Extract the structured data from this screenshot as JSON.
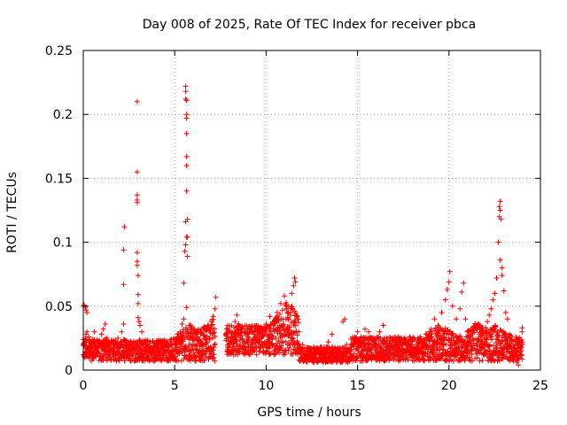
{
  "chart_data": {
    "type": "scatter",
    "title": "Day 008 of 2025, Rate Of TEC Index for receiver pbca",
    "xlabel": "GPS time / hours",
    "ylabel": "ROTI / TECUs",
    "xlim": [
      0,
      25
    ],
    "ylim": [
      0,
      0.25
    ],
    "xticks": [
      "0",
      "5",
      "10",
      "15",
      "20",
      "25"
    ],
    "yticks": [
      "0",
      "0.05",
      "0.1",
      "0.15",
      "0.2",
      "0.25"
    ],
    "grid": true,
    "marker": "plus",
    "colors": {
      "points": "#ff0000",
      "grid": "#a0a0a0"
    },
    "series": [
      {
        "points": [
          [
            0.0,
            0.05
          ],
          [
            0.05,
            0.051
          ],
          [
            0.1,
            0.049
          ],
          [
            0.15,
            0.047
          ],
          [
            0.2,
            0.045
          ],
          [
            0.05,
            0.02
          ],
          [
            0.1,
            0.025
          ],
          [
            0.15,
            0.028
          ],
          [
            0.2,
            0.03
          ],
          [
            0.3,
            0.026
          ],
          [
            0.4,
            0.022
          ],
          [
            0.5,
            0.024
          ],
          [
            0.6,
            0.03
          ],
          [
            0.7,
            0.018
          ],
          [
            0.8,
            0.015
          ],
          [
            0.9,
            0.02
          ],
          [
            1.0,
            0.028
          ],
          [
            1.1,
            0.032
          ],
          [
            1.2,
            0.036
          ],
          [
            1.3,
            0.025
          ],
          [
            1.5,
            0.018
          ],
          [
            1.7,
            0.022
          ],
          [
            1.9,
            0.025
          ],
          [
            2.0,
            0.02
          ],
          [
            2.1,
            0.03
          ],
          [
            2.2,
            0.036
          ],
          [
            2.2,
            0.067
          ],
          [
            2.2,
            0.094
          ],
          [
            2.25,
            0.112
          ],
          [
            2.4,
            0.018
          ],
          [
            2.6,
            0.015
          ],
          [
            2.8,
            0.02
          ],
          [
            2.95,
            0.21
          ],
          [
            2.95,
            0.155
          ],
          [
            2.95,
            0.137
          ],
          [
            2.95,
            0.133
          ],
          [
            2.95,
            0.131
          ],
          [
            2.95,
            0.092
          ],
          [
            2.95,
            0.085
          ],
          [
            2.95,
            0.082
          ],
          [
            3.0,
            0.074
          ],
          [
            3.0,
            0.059
          ],
          [
            3.0,
            0.052
          ],
          [
            3.0,
            0.041
          ],
          [
            3.05,
            0.038
          ],
          [
            3.1,
            0.035
          ],
          [
            3.2,
            0.03
          ],
          [
            3.4,
            0.022
          ],
          [
            3.6,
            0.018
          ],
          [
            3.8,
            0.015
          ],
          [
            4.0,
            0.018
          ],
          [
            4.2,
            0.022
          ],
          [
            4.4,
            0.02
          ],
          [
            4.6,
            0.016
          ],
          [
            4.8,
            0.018
          ],
          [
            5.0,
            0.02
          ],
          [
            5.2,
            0.025
          ],
          [
            5.3,
            0.03
          ],
          [
            5.4,
            0.036
          ],
          [
            5.5,
            0.04
          ],
          [
            5.5,
            0.068
          ],
          [
            5.55,
            0.093
          ],
          [
            5.6,
            0.098
          ],
          [
            5.6,
            0.116
          ],
          [
            5.65,
            0.104
          ],
          [
            5.7,
            0.104
          ],
          [
            5.7,
            0.118
          ],
          [
            5.7,
            0.089
          ],
          [
            5.6,
            0.222
          ],
          [
            5.6,
            0.218
          ],
          [
            5.6,
            0.212
          ],
          [
            5.65,
            0.211
          ],
          [
            5.65,
            0.2
          ],
          [
            5.65,
            0.197
          ],
          [
            5.65,
            0.185
          ],
          [
            5.65,
            0.167
          ],
          [
            5.65,
            0.16
          ],
          [
            5.65,
            0.14
          ],
          [
            5.65,
            0.049
          ],
          [
            5.8,
            0.035
          ],
          [
            6.0,
            0.025
          ],
          [
            6.1,
            0.02
          ],
          [
            6.2,
            0.028
          ],
          [
            6.3,
            0.032
          ],
          [
            6.4,
            0.03
          ],
          [
            6.6,
            0.034
          ],
          [
            6.8,
            0.032
          ],
          [
            7.0,
            0.035
          ],
          [
            7.1,
            0.042
          ],
          [
            7.2,
            0.048
          ],
          [
            7.25,
            0.057
          ],
          [
            7.9,
            0.035
          ],
          [
            8.0,
            0.03
          ],
          [
            8.1,
            0.022
          ],
          [
            8.2,
            0.018
          ],
          [
            8.3,
            0.038
          ],
          [
            8.4,
            0.043
          ],
          [
            8.5,
            0.036
          ],
          [
            8.6,
            0.025
          ],
          [
            8.8,
            0.018
          ],
          [
            9.0,
            0.022
          ],
          [
            9.2,
            0.03
          ],
          [
            9.4,
            0.026
          ],
          [
            9.6,
            0.024
          ],
          [
            9.8,
            0.03
          ],
          [
            10.0,
            0.036
          ],
          [
            10.2,
            0.042
          ],
          [
            10.4,
            0.038
          ],
          [
            10.6,
            0.045
          ],
          [
            10.8,
            0.052
          ],
          [
            11.0,
            0.058
          ],
          [
            11.1,
            0.05
          ],
          [
            11.2,
            0.045
          ],
          [
            11.4,
            0.06
          ],
          [
            11.5,
            0.066
          ],
          [
            11.55,
            0.072
          ],
          [
            11.6,
            0.069
          ],
          [
            11.7,
            0.042
          ],
          [
            11.8,
            0.03
          ],
          [
            12.0,
            0.02
          ],
          [
            12.2,
            0.015
          ],
          [
            12.4,
            0.012
          ],
          [
            12.6,
            0.01
          ],
          [
            12.8,
            0.015
          ],
          [
            13.0,
            0.018
          ],
          [
            13.2,
            0.012
          ],
          [
            13.4,
            0.022
          ],
          [
            13.6,
            0.028
          ],
          [
            13.8,
            0.016
          ],
          [
            14.0,
            0.012
          ],
          [
            14.2,
            0.038
          ],
          [
            14.3,
            0.04
          ],
          [
            14.4,
            0.02
          ],
          [
            14.6,
            0.016
          ],
          [
            14.8,
            0.024
          ],
          [
            15.0,
            0.03
          ],
          [
            15.2,
            0.026
          ],
          [
            15.4,
            0.032
          ],
          [
            15.6,
            0.03
          ],
          [
            15.8,
            0.025
          ],
          [
            16.0,
            0.022
          ],
          [
            16.2,
            0.03
          ],
          [
            16.4,
            0.035
          ],
          [
            16.6,
            0.025
          ],
          [
            16.8,
            0.02
          ],
          [
            17.0,
            0.016
          ],
          [
            17.2,
            0.018
          ],
          [
            17.4,
            0.025
          ],
          [
            17.6,
            0.022
          ],
          [
            17.8,
            0.016
          ],
          [
            18.0,
            0.014
          ],
          [
            18.2,
            0.018
          ],
          [
            18.4,
            0.024
          ],
          [
            18.6,
            0.02
          ],
          [
            18.8,
            0.025
          ],
          [
            19.0,
            0.032
          ],
          [
            19.2,
            0.04
          ],
          [
            19.4,
            0.035
          ],
          [
            19.6,
            0.045
          ],
          [
            19.8,
            0.055
          ],
          [
            19.9,
            0.063
          ],
          [
            20.0,
            0.069
          ],
          [
            20.05,
            0.077
          ],
          [
            20.2,
            0.05
          ],
          [
            20.4,
            0.04
          ],
          [
            20.6,
            0.048
          ],
          [
            20.7,
            0.061
          ],
          [
            20.8,
            0.068
          ],
          [
            20.9,
            0.04
          ],
          [
            21.0,
            0.03
          ],
          [
            21.2,
            0.032
          ],
          [
            21.4,
            0.034
          ],
          [
            21.6,
            0.036
          ],
          [
            21.8,
            0.03
          ],
          [
            22.0,
            0.033
          ],
          [
            22.1,
            0.038
          ],
          [
            22.2,
            0.043
          ],
          [
            22.3,
            0.048
          ],
          [
            22.4,
            0.055
          ],
          [
            22.5,
            0.06
          ],
          [
            22.6,
            0.072
          ],
          [
            22.7,
            0.1
          ],
          [
            22.75,
            0.12
          ],
          [
            22.75,
            0.128
          ],
          [
            22.8,
            0.132
          ],
          [
            22.8,
            0.125
          ],
          [
            22.85,
            0.118
          ],
          [
            22.8,
            0.086
          ],
          [
            22.9,
            0.08
          ],
          [
            22.9,
            0.074
          ],
          [
            23.0,
            0.062
          ],
          [
            23.1,
            0.045
          ],
          [
            23.2,
            0.04
          ],
          [
            23.3,
            0.028
          ],
          [
            23.4,
            0.024
          ],
          [
            23.5,
            0.018
          ],
          [
            23.6,
            0.01
          ],
          [
            23.7,
            0.006
          ],
          [
            23.8,
            0.004
          ],
          [
            23.9,
            0.012
          ],
          [
            24.0,
            0.022
          ],
          [
            24.0,
            0.03
          ],
          [
            24.0,
            0.033
          ]
        ]
      }
    ],
    "band": {
      "segments": [
        {
          "x0": 0.0,
          "x1": 7.2,
          "lo": 0.007,
          "hi": 0.024,
          "hump": [
            [
              5.8,
              0.012
            ],
            [
              7.0,
              0.018
            ]
          ]
        },
        {
          "x0": 7.8,
          "x1": 11.8,
          "lo": 0.012,
          "hi": 0.035,
          "hump": [
            [
              11.2,
              0.02
            ]
          ]
        },
        {
          "x0": 11.8,
          "x1": 14.6,
          "lo": 0.006,
          "hi": 0.018,
          "hump": []
        },
        {
          "x0": 14.6,
          "x1": 24.0,
          "lo": 0.007,
          "hi": 0.026,
          "hump": [
            [
              19.5,
              0.01
            ],
            [
              21.5,
              0.012
            ],
            [
              22.5,
              0.01
            ]
          ]
        }
      ]
    }
  }
}
